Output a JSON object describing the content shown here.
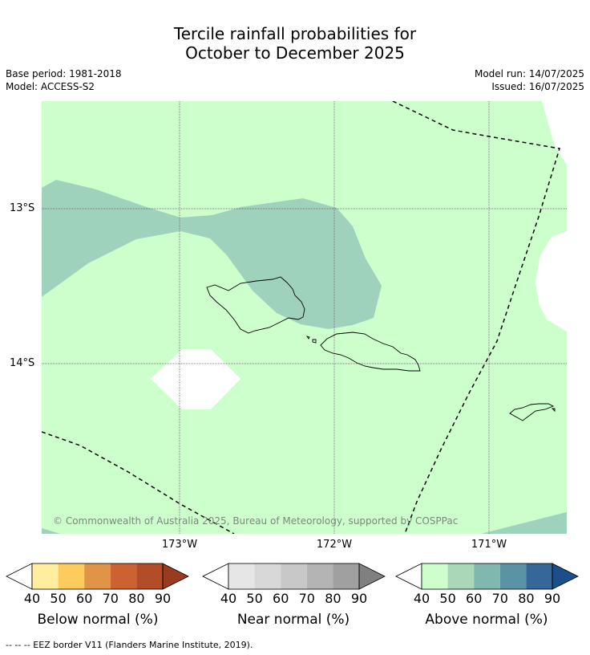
{
  "title_line1": "Tercile rainfall probabilities for",
  "title_line2": "October to December 2025",
  "base_period": "Base period: 1981-2018",
  "model": "Model: ACCESS-S2",
  "model_run": "Model run: 14/07/2025",
  "issued": "Issued: 16/07/2025",
  "copyright": "© Commonwealth of Australia 2025, Bureau of Meteorology, supported by COSPPac",
  "lat_labels": [
    "13°S",
    "14°S"
  ],
  "lon_labels": [
    "173°W",
    "172°W",
    "171°W"
  ],
  "colorbars": [
    {
      "label": "Below normal (%)",
      "ticks": [
        "40",
        "50",
        "60",
        "70",
        "80",
        "90"
      ],
      "colors": [
        "#ffffff",
        "#ffeda0",
        "#fecc5c",
        "#e09448",
        "#cc6232",
        "#b24d27",
        "#9a3a1e"
      ]
    },
    {
      "label": "Near normal (%)",
      "ticks": [
        "40",
        "50",
        "60",
        "70",
        "80",
        "90"
      ],
      "colors": [
        "#ffffff",
        "#e6e6e6",
        "#d8d8d8",
        "#c8c8c8",
        "#b4b4b4",
        "#a0a0a0",
        "#808080"
      ]
    },
    {
      "label": "Above normal (%)",
      "ticks": [
        "40",
        "50",
        "60",
        "70",
        "80",
        "90"
      ],
      "colors": [
        "#ffffff",
        "#ccffcc",
        "#a8d8b8",
        "#80b8b0",
        "#5a94a4",
        "#356898",
        "#1a4f8a"
      ]
    }
  ],
  "footnote": "--  --  -- EEZ border V11 (Flanders Marine Institute, 2019).",
  "map_colors": {
    "above_40_50": "#ccffcc",
    "above_50_60": "#9fd2bc",
    "no_data": "#ffffff"
  }
}
